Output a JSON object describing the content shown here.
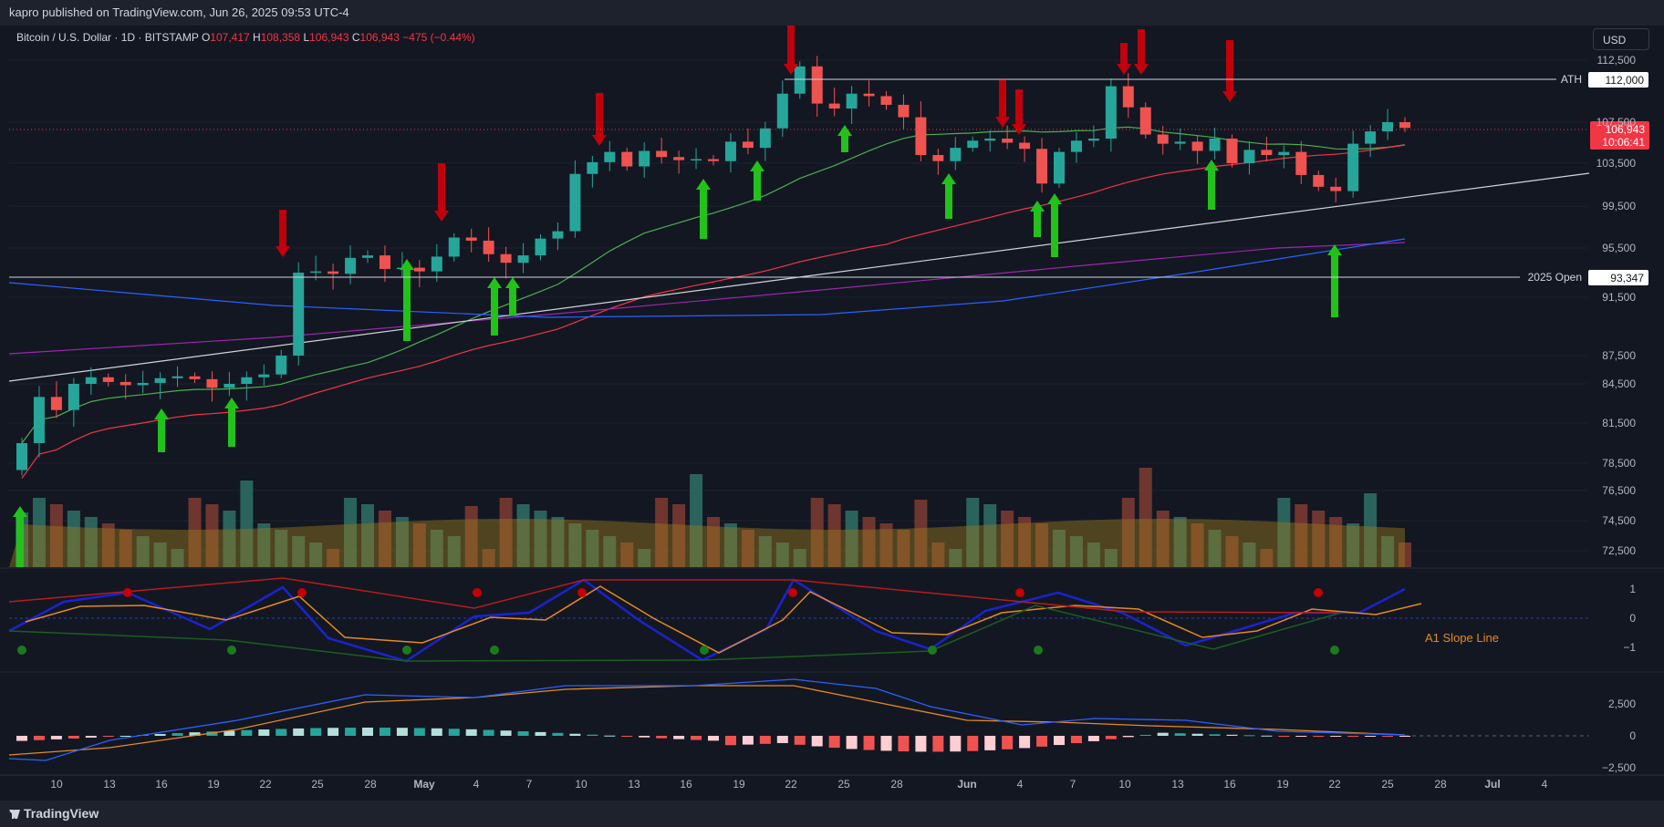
{
  "header": {
    "published": "kapro published on TradingView.com, Jun 26, 2025 09:53 UTC-4"
  },
  "legend": {
    "symbol": "Bitcoin / U.S. Dollar · 1D · BITSTAMP",
    "o_label": "O",
    "o": "107,417",
    "h_label": "H",
    "h": "108,358",
    "l_label": "L",
    "l": "106,943",
    "c_label": "C",
    "c": "106,943",
    "change": "−475 (−0.44%)"
  },
  "currency_button": "USD",
  "footer": {
    "brand": "TradingView"
  },
  "colors": {
    "up": "#26a69a",
    "down": "#ef5350",
    "sma_green": "#4caf50",
    "sma_red": "#f23645",
    "purple": "#9c27b0",
    "blue": "#2962ff",
    "arrow_up": "#22c21b",
    "arrow_down": "#c0000c"
  },
  "chart_data": {
    "type": "candlestick",
    "x_ticks": [
      "10",
      "13",
      "16",
      "19",
      "22",
      "25",
      "28",
      "May",
      "4",
      "7",
      "10",
      "13",
      "16",
      "19",
      "22",
      "25",
      "28",
      "Jun",
      "4",
      "7",
      "10",
      "13",
      "16",
      "19",
      "22",
      "25",
      "28",
      "Jul",
      "4"
    ],
    "y_ticks": [
      "112,500",
      "107,500",
      "103,500",
      "99,500",
      "95,500",
      "91,500",
      "87,500",
      "84,500",
      "81,500",
      "78,500",
      "76,500",
      "74,500",
      "72,500"
    ],
    "price_labels": [
      {
        "text": "ATH",
        "value": "112,000"
      },
      {
        "text": "2025 Open",
        "value": "93,347"
      }
    ],
    "last_price": "106,943",
    "countdown": "10:06:41",
    "oscillator": {
      "label": "A1 Slope Line",
      "y_ticks": [
        "1",
        "0",
        "−1"
      ]
    },
    "macd": {
      "y_ticks": [
        "2,500",
        "0",
        "−2,500"
      ]
    }
  }
}
